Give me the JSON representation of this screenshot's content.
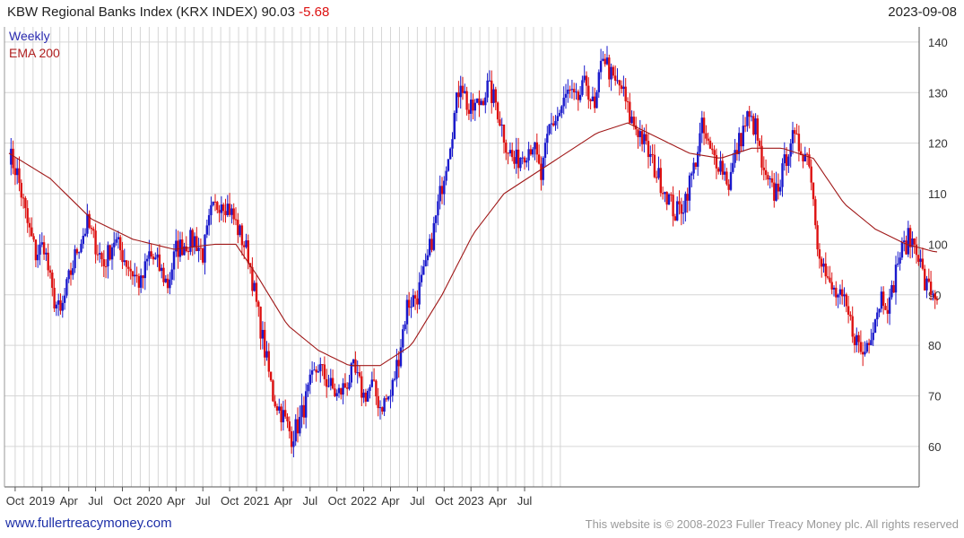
{
  "header": {
    "title": "KBW Regional Banks Index  (KRX INDEX) 90.03",
    "change": "-5.68",
    "date": "2023-09-08"
  },
  "legend": {
    "series1": "Weekly",
    "series2": "EMA 200"
  },
  "footer": {
    "left": "www.fullertreacymoney.com",
    "right": "This website is © 2008-2023 Fuller Treacy Money plc. All rights reserved"
  },
  "colors": {
    "up": "#1a1acc",
    "down": "#dd1111",
    "ema": "#a01818",
    "grid": "#d6d6d6",
    "axis": "#555555"
  },
  "chart_data": {
    "type": "candlestick",
    "title": "KBW Regional Banks Index  (KRX INDEX) 90.03",
    "xlabel": "",
    "ylabel": "",
    "ylim": [
      52,
      143
    ],
    "y_ticks": [
      60,
      70,
      80,
      90,
      100,
      110,
      120,
      130,
      140
    ],
    "x_ticks": [
      "Oct",
      "2019",
      "Apr",
      "Jul",
      "Oct",
      "2020",
      "Apr",
      "Jul",
      "Oct",
      "2021",
      "Apr",
      "Jul",
      "Oct",
      "2022",
      "Apr",
      "Jul",
      "Oct",
      "2023",
      "Apr",
      "Jul"
    ],
    "grid": true,
    "series": [
      {
        "name": "Weekly",
        "kind": "weekly-bars",
        "close_path": [
          [
            0,
            118
          ],
          [
            4,
            114
          ],
          [
            9,
            104
          ],
          [
            13,
            98
          ],
          [
            17,
            100
          ],
          [
            21,
            90
          ],
          [
            25,
            86
          ],
          [
            29,
            93
          ],
          [
            33,
            99
          ],
          [
            38,
            104
          ],
          [
            42,
            100
          ],
          [
            46,
            96
          ],
          [
            51,
            101
          ],
          [
            55,
            98
          ],
          [
            59,
            95
          ],
          [
            64,
            92
          ],
          [
            68,
            98
          ],
          [
            72,
            96
          ],
          [
            77,
            92
          ],
          [
            81,
            99
          ],
          [
            85,
            100
          ],
          [
            90,
            101
          ],
          [
            94,
            98
          ],
          [
            98,
            106
          ],
          [
            103,
            109
          ],
          [
            107,
            107
          ],
          [
            111,
            103
          ],
          [
            116,
            98
          ],
          [
            120,
            88
          ],
          [
            124,
            79
          ],
          [
            128,
            70
          ],
          [
            133,
            66
          ],
          [
            137,
            62
          ],
          [
            141,
            65
          ],
          [
            146,
            72
          ],
          [
            150,
            76
          ],
          [
            154,
            73
          ],
          [
            159,
            70
          ],
          [
            163,
            72
          ],
          [
            167,
            75
          ],
          [
            172,
            70
          ],
          [
            176,
            72
          ],
          [
            180,
            68
          ],
          [
            185,
            70
          ],
          [
            189,
            78
          ],
          [
            193,
            88
          ],
          [
            198,
            90
          ],
          [
            202,
            95
          ],
          [
            206,
            103
          ],
          [
            210,
            112
          ],
          [
            215,
            123
          ],
          [
            219,
            133
          ],
          [
            223,
            126
          ],
          [
            228,
            128
          ],
          [
            232,
            131
          ],
          [
            236,
            128
          ],
          [
            241,
            120
          ],
          [
            245,
            116
          ],
          [
            249,
            118
          ],
          [
            254,
            120
          ],
          [
            258,
            113
          ],
          [
            262,
            123
          ],
          [
            267,
            126
          ],
          [
            271,
            130
          ],
          [
            275,
            128
          ],
          [
            280,
            132
          ],
          [
            284,
            126
          ],
          [
            288,
            138
          ],
          [
            293,
            132
          ],
          [
            297,
            131
          ],
          [
            301,
            125
          ],
          [
            306,
            122
          ],
          [
            310,
            118
          ],
          [
            314,
            114
          ],
          [
            319,
            110
          ],
          [
            323,
            106
          ],
          [
            327,
            108
          ],
          [
            332,
            115
          ],
          [
            336,
            123
          ],
          [
            340,
            118
          ],
          [
            345,
            116
          ],
          [
            349,
            112
          ],
          [
            353,
            119
          ],
          [
            358,
            125
          ],
          [
            362,
            123
          ],
          [
            366,
            113
          ],
          [
            371,
            110
          ],
          [
            375,
            114
          ],
          [
            379,
            121
          ],
          [
            384,
            119
          ],
          [
            388,
            117
          ],
          [
            392,
            101
          ],
          [
            397,
            92
          ],
          [
            401,
            90
          ],
          [
            405,
            88
          ],
          [
            410,
            82
          ],
          [
            414,
            78
          ],
          [
            418,
            83
          ],
          [
            423,
            90
          ],
          [
            427,
            88
          ],
          [
            431,
            97
          ],
          [
            436,
            101
          ],
          [
            440,
            100
          ],
          [
            444,
            92
          ],
          [
            449,
            90
          ]
        ]
      },
      {
        "name": "EMA 200",
        "kind": "line",
        "points": [
          [
            0,
            118
          ],
          [
            20,
            113
          ],
          [
            40,
            105
          ],
          [
            60,
            101
          ],
          [
            80,
            99
          ],
          [
            100,
            100
          ],
          [
            110,
            100
          ],
          [
            120,
            94
          ],
          [
            135,
            84
          ],
          [
            150,
            79
          ],
          [
            165,
            76
          ],
          [
            180,
            76
          ],
          [
            195,
            80
          ],
          [
            210,
            90
          ],
          [
            225,
            102
          ],
          [
            240,
            110
          ],
          [
            255,
            114
          ],
          [
            270,
            118
          ],
          [
            285,
            122
          ],
          [
            300,
            124
          ],
          [
            315,
            121
          ],
          [
            330,
            118
          ],
          [
            345,
            117
          ],
          [
            360,
            119
          ],
          [
            375,
            119
          ],
          [
            390,
            117
          ],
          [
            405,
            108
          ],
          [
            420,
            103
          ],
          [
            435,
            100
          ],
          [
            449,
            98.5
          ]
        ]
      }
    ]
  }
}
